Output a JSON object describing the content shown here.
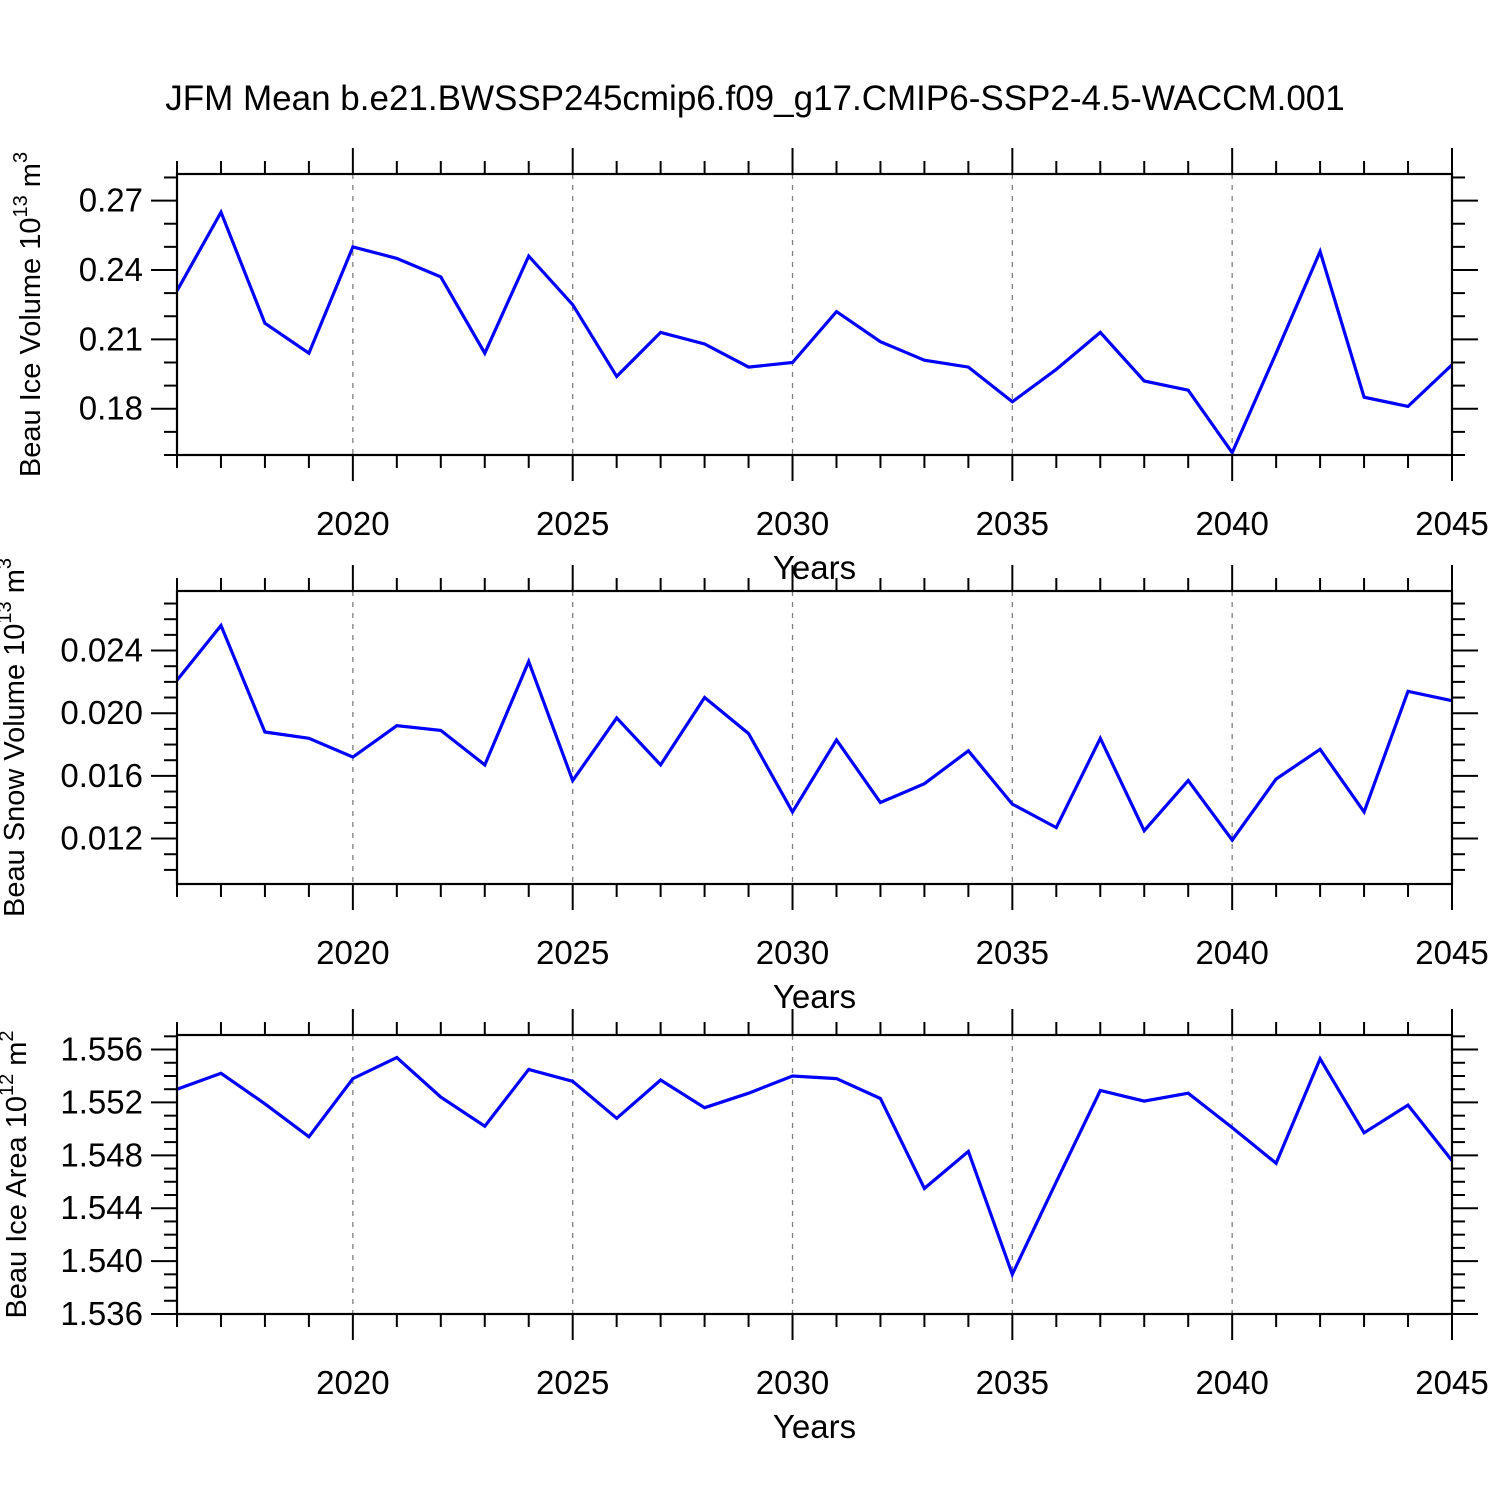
{
  "title": "JFM Mean b.e21.BWSSP245cmip6.f09_g17.CMIP6-SSP2-4.5-WACCM.001",
  "chart_data": {
    "type": "line",
    "title": "JFM Mean b.e21.BWSSP245cmip6.f09_g17.CMIP6-SSP2-4.5-WACCM.001",
    "xlabel": "Years",
    "line_color": "#0000ff",
    "frame_color": "#000000",
    "gridline_color": "#7f7f7f",
    "background": "#ffffff",
    "legend": "none",
    "xlim": [
      2016,
      2045
    ],
    "x": [
      2016,
      2017,
      2018,
      2019,
      2020,
      2021,
      2022,
      2023,
      2024,
      2025,
      2026,
      2027,
      2028,
      2029,
      2030,
      2031,
      2032,
      2033,
      2034,
      2035,
      2036,
      2037,
      2038,
      2039,
      2040,
      2041,
      2042,
      2043,
      2044,
      2045
    ],
    "x_major_ticks": [
      2020,
      2025,
      2030,
      2035,
      2040,
      2045
    ],
    "x_major_tick_labels": [
      "2020",
      "2025",
      "2030",
      "2035",
      "2040",
      "2045"
    ],
    "x_minor_step": 1,
    "x_gridlines": [
      2020,
      2025,
      2030,
      2035,
      2040
    ],
    "series": [
      {
        "name": "Beau Ice Volume 10^13 m^3",
        "ylabel_segments": [
          {
            "t": "Beau Ice Volume 10"
          },
          {
            "t": "13",
            "sup": true
          },
          {
            "t": " m"
          },
          {
            "t": "3",
            "sup": true
          }
        ],
        "ylim": [
          0.16,
          0.2815
        ],
        "ytick_values": [
          0.18,
          0.21,
          0.24,
          0.27
        ],
        "ytick_labels": [
          "0.18",
          "0.21",
          "0.24",
          "0.27"
        ],
        "y_minor_step": 0.01,
        "values": [
          0.231,
          0.265,
          0.217,
          0.204,
          0.25,
          0.245,
          0.237,
          0.204,
          0.246,
          0.225,
          0.194,
          0.213,
          0.208,
          0.198,
          0.2,
          0.222,
          0.209,
          0.201,
          0.198,
          0.183,
          0.197,
          0.213,
          0.192,
          0.188,
          0.161,
          0.204,
          0.248,
          0.185,
          0.181,
          0.199
        ]
      },
      {
        "name": "Beau Snow Volume 10^13 m^3",
        "ylabel_segments": [
          {
            "t": "Beau Snow Volume 10"
          },
          {
            "t": "13",
            "sup": true
          },
          {
            "t": " m"
          },
          {
            "t": "3",
            "sup": true
          }
        ],
        "ylim": [
          0.0091,
          0.0278
        ],
        "ytick_values": [
          0.012,
          0.016,
          0.02,
          0.024
        ],
        "ytick_labels": [
          "0.012",
          "0.016",
          "0.020",
          "0.024"
        ],
        "y_minor_step": 0.001,
        "values": [
          0.0221,
          0.0256,
          0.0188,
          0.0184,
          0.0172,
          0.0192,
          0.0189,
          0.0167,
          0.0233,
          0.0157,
          0.0197,
          0.0167,
          0.021,
          0.0187,
          0.0137,
          0.0183,
          0.0143,
          0.0155,
          0.0176,
          0.0142,
          0.0127,
          0.0184,
          0.0125,
          0.0157,
          0.0119,
          0.0158,
          0.0177,
          0.0137,
          0.0214,
          0.0208
        ]
      },
      {
        "name": "Beau Ice Area 10^12 m^2",
        "ylabel_segments": [
          {
            "t": "Beau Ice Area 10"
          },
          {
            "t": "12",
            "sup": true
          },
          {
            "t": " m"
          },
          {
            "t": "2",
            "sup": true
          }
        ],
        "ylim": [
          1.536,
          1.5571
        ],
        "ytick_values": [
          1.536,
          1.54,
          1.544,
          1.548,
          1.552,
          1.556
        ],
        "ytick_labels": [
          "1.536",
          "1.540",
          "1.544",
          "1.548",
          "1.552",
          "1.556"
        ],
        "y_minor_step": 0.001,
        "values": [
          1.553,
          1.5542,
          1.5519,
          1.5494,
          1.5538,
          1.5554,
          1.5524,
          1.5502,
          1.5545,
          1.5536,
          1.5508,
          1.5537,
          1.5516,
          1.5527,
          1.554,
          1.5538,
          1.5523,
          1.5455,
          1.5483,
          1.539,
          1.546,
          1.5529,
          1.5521,
          1.5527,
          1.5501,
          1.5474,
          1.5553,
          1.5497,
          1.5518,
          1.5476
        ]
      }
    ]
  }
}
